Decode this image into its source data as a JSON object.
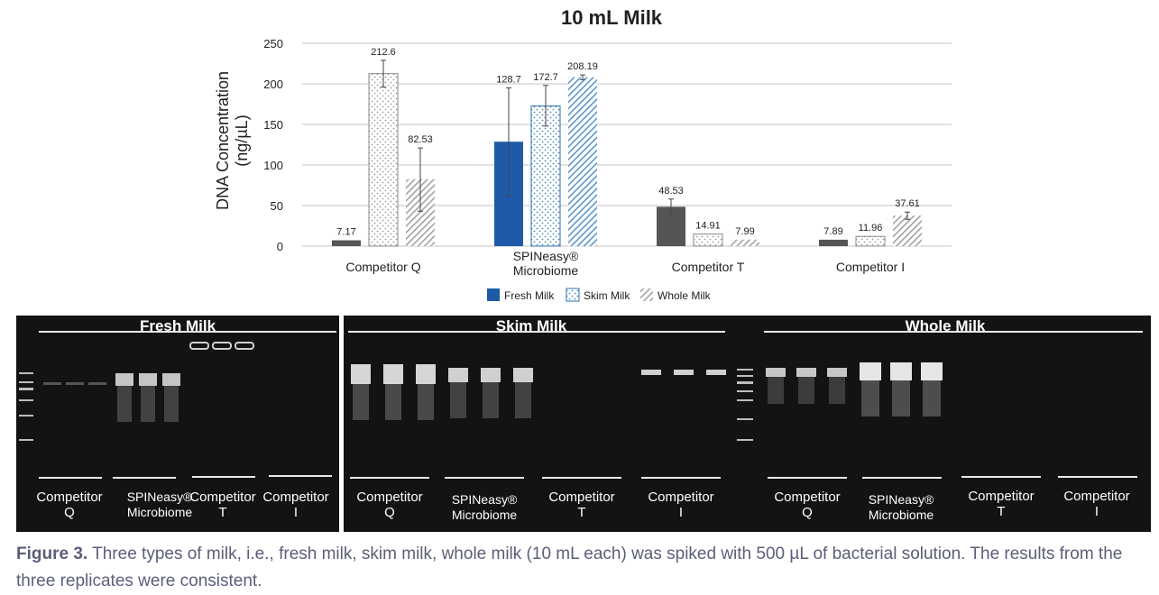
{
  "chart_data": {
    "type": "bar",
    "title": "10 mL Milk",
    "ylabel_line1": "DNA Concentration",
    "ylabel_line2": "(ng/µL)",
    "xlabel": "",
    "ylim": [
      0,
      250
    ],
    "yticks": [
      "0",
      "50",
      "100",
      "150",
      "200",
      "250"
    ],
    "grid": true,
    "legend_position": "bottom",
    "categories": [
      {
        "line1": "Competitor Q",
        "line2": ""
      },
      {
        "line1": "SPINeasy®",
        "line2": "Microbiome"
      },
      {
        "line1": "Competitor T",
        "line2": ""
      },
      {
        "line1": "Competitor I",
        "line2": ""
      }
    ],
    "series": [
      {
        "name": "Fresh Milk",
        "pattern": "solid",
        "values": [
          7.17,
          128.7,
          48.53,
          7.89
        ],
        "labels": [
          "7.17",
          "128.7",
          "48.53",
          "7.89"
        ],
        "error_low": [
          7.17,
          62,
          39,
          7.89
        ],
        "error_high": [
          7.17,
          195,
          58,
          7.89
        ]
      },
      {
        "name": "Skim Milk",
        "pattern": "dots",
        "values": [
          212.6,
          172.7,
          14.91,
          11.96
        ],
        "labels": [
          "212.6",
          "172.7",
          "14.91",
          "11.96"
        ],
        "error_low": [
          196,
          148,
          14.91,
          11.96
        ],
        "error_high": [
          229,
          198,
          14.91,
          11.96
        ]
      },
      {
        "name": "Whole Milk",
        "pattern": "hatch",
        "values": [
          82.53,
          208.19,
          7.99,
          37.61
        ],
        "labels": [
          "82.53",
          "208.19",
          "7.99",
          "37.61"
        ],
        "error_low": [
          43,
          205,
          7.99,
          33
        ],
        "error_high": [
          121,
          211,
          7.99,
          42
        ]
      }
    ]
  },
  "colors": {
    "fresh": "#1e5aa8",
    "fresh_small": "#555555",
    "skim": "#6a9fc8",
    "whole": "#a3a3a3",
    "grid": "#c6c6c6",
    "caption": "#5b5e7a"
  },
  "gels": {
    "fresh": {
      "title": "Fresh Milk",
      "lanes": [
        {
          "line1": "Competitor",
          "line2": "Q"
        },
        {
          "line1": "SPINeasy®",
          "line2": "Microbiome"
        },
        {
          "line1": "Competitor",
          "line2": "T"
        },
        {
          "line1": "Competitor",
          "line2": "I"
        }
      ]
    },
    "skim_title": "Skim Milk",
    "whole_title": "Whole Milk",
    "skim_lanes": [
      {
        "line1": "Competitor",
        "line2": "Q"
      },
      {
        "line1": "SPINeasy®",
        "line2": "Microbiome"
      },
      {
        "line1": "Competitor",
        "line2": "T"
      },
      {
        "line1": "Competitor",
        "line2": "I"
      }
    ],
    "whole_lanes": [
      {
        "line1": "Competitor",
        "line2": "Q"
      },
      {
        "line1": "SPINeasy®",
        "line2": "Microbiome"
      },
      {
        "line1": "Competitor",
        "line2": "T"
      },
      {
        "line1": "Competitor",
        "line2": "I"
      }
    ]
  },
  "caption": {
    "label": "Figure 3.",
    "text": "Three types of milk, i.e., fresh milk, skim milk, whole milk (10 mL each) was spiked with 500 µL of bacterial solution. The results from the three replicates were consistent."
  }
}
